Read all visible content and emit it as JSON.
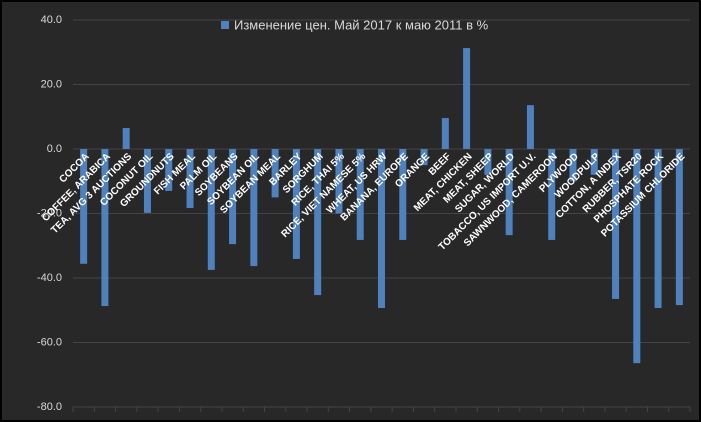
{
  "chart_data": {
    "type": "bar",
    "categories": [
      "COCOA",
      "COFFEE, ARABICA",
      "TEA, AVG 3 AUCTIONS",
      "COCONUT OIL",
      "GROUNDNUTS",
      "FISH MEAL",
      "PALM OIL",
      "SOYBEANS",
      "SOYBEAN OIL",
      "SOYBEAN MEAL",
      "BARLEY",
      "SORGHUM",
      "RICE, THAI 5%",
      "RICE, VIET NAMESE 5%",
      "WHEAT, US HRW",
      "BANANA, EUROPE",
      "ORANGE",
      "BEEF",
      "MEAT, CHICKEN",
      "MEAT, SHEEP",
      "SUGAR, WORLD",
      "TOBACCO, US IMPORT U.V.",
      "SAWNWOOD, CAMEROON",
      "PLYWOOD",
      "WOODPULP",
      "COTTON, A INDEX",
      "RUBBER, TSR20",
      "PHOSPHATE ROCK",
      "POTASSIUM CHLORIDE"
    ],
    "series": [
      {
        "name": "Изменение цен. Май 2017 к маю 2011 в %",
        "color": "#4f81bd",
        "values": [
          -35.6,
          -48.7,
          6.5,
          -19.8,
          -13,
          -18.3,
          -37.5,
          -29.5,
          -36.3,
          -15,
          -34.1,
          -45.3,
          -20,
          -28.2,
          -49.3,
          -28.2,
          -5,
          9.6,
          31.3,
          -8,
          -26.7,
          13.6,
          -28.2,
          -10,
          -8,
          -46.5,
          -66.4,
          -49.3,
          -48.4
        ]
      }
    ],
    "ylim": [
      -80,
      40
    ],
    "yticks": [
      {
        "value": -80,
        "label": "-80.0"
      },
      {
        "value": -60,
        "label": "-60.0"
      },
      {
        "value": -40,
        "label": "-40.0"
      },
      {
        "value": -20,
        "label": "-20.0"
      },
      {
        "value": 0,
        "label": "0.0"
      },
      {
        "value": 20,
        "label": "20.0"
      },
      {
        "value": 40,
        "label": "40.0"
      }
    ],
    "grid": true,
    "legend": "top"
  }
}
